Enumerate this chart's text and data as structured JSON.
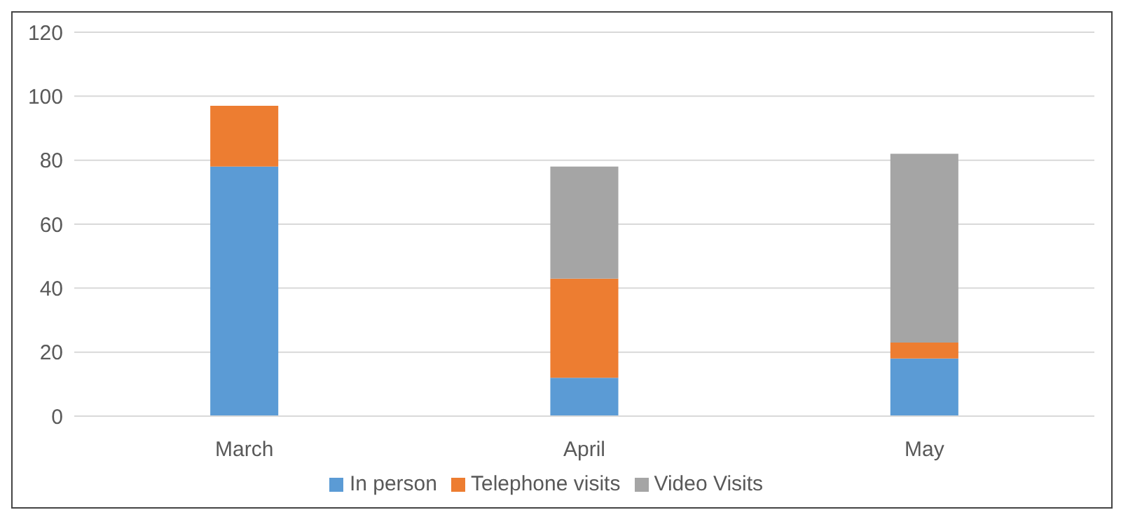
{
  "chart_data": {
    "type": "bar",
    "stacked": true,
    "categories": [
      "March",
      "April",
      "May"
    ],
    "series": [
      {
        "name": "In person",
        "color": "#5b9bd5",
        "values": [
          78,
          12,
          18
        ]
      },
      {
        "name": "Telephone visits",
        "color": "#ed7d31",
        "values": [
          19,
          31,
          5
        ]
      },
      {
        "name": "Video Visits",
        "color": "#a5a5a5",
        "values": [
          0,
          35,
          59
        ]
      }
    ],
    "ylim": [
      0,
      120
    ],
    "yticks": [
      0,
      20,
      40,
      60,
      80,
      100,
      120
    ],
    "grid": "y",
    "legend": "bottom"
  }
}
